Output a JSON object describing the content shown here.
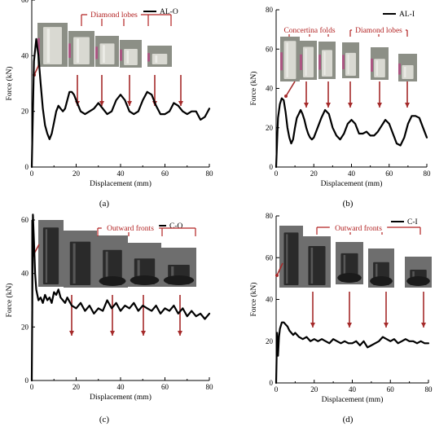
{
  "chart_data": [
    {
      "id": "a",
      "type": "line",
      "panel_label": "(a)",
      "xlabel": "Displacement (mm)",
      "ylabel": "Force (kN)",
      "xlim": [
        0,
        80
      ],
      "ylim": [
        0,
        60
      ],
      "xticks": [
        0,
        20,
        40,
        60,
        80
      ],
      "yticks": [
        0,
        20,
        40,
        60
      ],
      "legend": "AL-O",
      "legend_position": "top-right",
      "annotations": [
        "Diamond lobes"
      ],
      "series": [
        {
          "x": [
            0,
            1,
            2,
            3,
            4,
            5,
            6,
            7,
            8,
            9,
            10,
            11,
            12,
            13,
            14,
            15,
            16,
            17,
            18,
            19,
            20,
            21,
            22,
            24,
            26,
            28,
            30,
            32,
            34,
            36,
            38,
            40,
            42,
            44,
            46,
            48,
            50,
            52,
            54,
            56,
            58,
            60,
            62,
            64,
            66,
            68,
            70,
            72,
            74,
            76,
            78,
            80
          ],
          "y": [
            0,
            38,
            46,
            40,
            30,
            21,
            15,
            12,
            10,
            12,
            16,
            20,
            22,
            21,
            20,
            21,
            24,
            27,
            27,
            26,
            24,
            22,
            20,
            19,
            20,
            21,
            23,
            21,
            19,
            20,
            24,
            26,
            24,
            20,
            19,
            20,
            24,
            27,
            26,
            22,
            19,
            19,
            20,
            23,
            22,
            20,
            19,
            20,
            20,
            17,
            18,
            21
          ]
        }
      ]
    },
    {
      "id": "b",
      "type": "line",
      "panel_label": "(b)",
      "xlabel": "Displacement (mm)",
      "ylabel": "Force (kN)",
      "xlim": [
        0,
        80
      ],
      "ylim": [
        0,
        80
      ],
      "xticks": [
        0,
        20,
        40,
        60,
        80
      ],
      "yticks": [
        0,
        20,
        40,
        60,
        80
      ],
      "legend": "AL-I",
      "legend_position": "top-right",
      "annotations": [
        "Concertina folds",
        "Diamond lobes"
      ],
      "series": [
        {
          "x": [
            0,
            1,
            2,
            3,
            4,
            5,
            6,
            7,
            8,
            9,
            10,
            11,
            12,
            13,
            14,
            15,
            16,
            17,
            18,
            19,
            20,
            22,
            24,
            26,
            28,
            30,
            32,
            34,
            36,
            38,
            40,
            42,
            44,
            46,
            48,
            50,
            52,
            54,
            56,
            58,
            60,
            62,
            64,
            66,
            68,
            70,
            72,
            74,
            76,
            78,
            80
          ],
          "y": [
            0,
            25,
            32,
            35,
            34,
            28,
            20,
            15,
            12,
            14,
            20,
            25,
            27,
            29,
            27,
            24,
            20,
            17,
            15,
            14,
            15,
            20,
            25,
            29,
            27,
            20,
            16,
            14,
            17,
            22,
            24,
            22,
            17,
            17,
            18,
            16,
            16,
            18,
            21,
            24,
            22,
            17,
            12,
            11,
            15,
            22,
            26,
            26,
            25,
            20,
            15
          ]
        }
      ]
    },
    {
      "id": "c",
      "type": "line",
      "panel_label": "(c)",
      "xlabel": "Displacement (mm)",
      "ylabel": "Force (kN)",
      "xlim": [
        0,
        80
      ],
      "ylim": [
        0,
        60
      ],
      "xticks": [
        0,
        20,
        40,
        60,
        80
      ],
      "yticks": [
        0,
        20,
        40,
        60
      ],
      "legend": "C-O",
      "legend_position": "top-right",
      "annotations": [
        "Outward fronts"
      ],
      "series": [
        {
          "x": [
            0,
            0.5,
            1,
            1.5,
            2,
            3,
            4,
            5,
            6,
            7,
            8,
            9,
            10,
            11,
            12,
            13,
            14,
            15,
            16,
            18,
            20,
            22,
            24,
            26,
            28,
            30,
            32,
            34,
            36,
            38,
            40,
            42,
            44,
            46,
            48,
            50,
            52,
            54,
            56,
            58,
            60,
            62,
            64,
            66,
            68,
            70,
            72,
            74,
            76,
            78,
            80
          ],
          "y": [
            0,
            62,
            52,
            40,
            34,
            30,
            31,
            29,
            32,
            30,
            31,
            29,
            33,
            32,
            34,
            31,
            30,
            29,
            31,
            28,
            27,
            29,
            26,
            28,
            25,
            27,
            26,
            30,
            27,
            29,
            26,
            28,
            27,
            29,
            26,
            28,
            27,
            26,
            28,
            25,
            27,
            26,
            28,
            25,
            27,
            24,
            26,
            24,
            25,
            23,
            25
          ]
        }
      ]
    },
    {
      "id": "d",
      "type": "line",
      "panel_label": "(d)",
      "xlabel": "Displacement (mm)",
      "ylabel": "Force (kN)",
      "xlim": [
        0,
        80
      ],
      "ylim": [
        0,
        80
      ],
      "xticks": [
        0,
        20,
        40,
        60,
        80
      ],
      "yticks": [
        0,
        20,
        40,
        60,
        80
      ],
      "legend": "C-I",
      "legend_position": "top-right",
      "annotations": [
        "Outward fronts"
      ],
      "series": [
        {
          "x": [
            0,
            0.5,
            1,
            1.5,
            2,
            3,
            4,
            5,
            6,
            7,
            8,
            9,
            10,
            12,
            14,
            16,
            18,
            20,
            22,
            24,
            26,
            28,
            30,
            32,
            34,
            36,
            38,
            40,
            42,
            44,
            46,
            48,
            50,
            52,
            54,
            56,
            58,
            60,
            62,
            64,
            66,
            68,
            70,
            72,
            74,
            76,
            78,
            80
          ],
          "y": [
            0,
            24,
            13,
            22,
            26,
            29,
            29,
            28,
            27,
            25,
            24,
            23,
            24,
            22,
            21,
            22,
            20,
            21,
            20,
            21,
            20,
            19,
            21,
            20,
            19,
            20,
            19,
            19,
            20,
            18,
            20,
            17,
            18,
            19,
            20,
            22,
            21,
            20,
            21,
            19,
            20,
            21,
            20,
            20,
            19,
            20,
            19,
            19
          ]
        }
      ]
    }
  ]
}
